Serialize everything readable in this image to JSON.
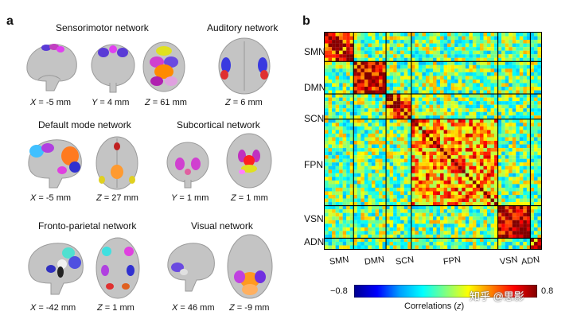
{
  "panel_a": {
    "letter": "a",
    "networks": [
      {
        "key": "smn",
        "title": "Sensorimotor network",
        "coords": [
          {
            "axis": "X",
            "value": "= -5 mm"
          },
          {
            "axis": "Y",
            "value": "= 4 mm"
          },
          {
            "axis": "Z",
            "value": "= 61 mm"
          }
        ]
      },
      {
        "key": "aud",
        "title": "Auditory network",
        "coords": [
          {
            "axis": "Z",
            "value": "= 6 mm"
          }
        ]
      },
      {
        "key": "dmn",
        "title": "Default mode network",
        "coords": [
          {
            "axis": "X",
            "value": "= -5 mm"
          },
          {
            "axis": "Z",
            "value": "= 27 mm"
          }
        ]
      },
      {
        "key": "scn",
        "title": "Subcortical network",
        "coords": [
          {
            "axis": "Y",
            "value": "= 1 mm"
          },
          {
            "axis": "Z",
            "value": "= 1 mm"
          }
        ]
      },
      {
        "key": "fpn",
        "title": "Fronto-parietal network",
        "coords": [
          {
            "axis": "X",
            "value": "= -42 mm"
          },
          {
            "axis": "Z",
            "value": "= 1 mm"
          }
        ]
      },
      {
        "key": "vsn",
        "title": "Visual network",
        "coords": [
          {
            "axis": "X",
            "value": "= 46 mm"
          },
          {
            "axis": "Z",
            "value": "= -9 mm"
          }
        ]
      }
    ]
  },
  "panel_b": {
    "letter": "b",
    "row_labels": [
      "SMN",
      "DMN",
      "SCN",
      "FPN",
      "VSN",
      "ADN"
    ],
    "col_labels": [
      "SMN",
      "DMN",
      "SCN",
      "FPN",
      "VSN",
      "ADN"
    ],
    "colorbar": {
      "min_label": "−0.8",
      "max_label": "0.8",
      "label": "Correlations",
      "label_var": "z"
    }
  },
  "watermark": "知乎 @思影",
  "chart_data": {
    "type": "heatmap",
    "title": "",
    "xlabel": "",
    "ylabel": "",
    "groups": [
      "SMN",
      "DMN",
      "SCN",
      "FPN",
      "VSN",
      "ADN"
    ],
    "group_sizes": [
      8,
      9,
      7,
      24,
      9,
      3
    ],
    "within_group_mean": {
      "SMN": 0.55,
      "DMN": 0.65,
      "SCN": 0.5,
      "FPN": 0.35,
      "VSN": 0.75,
      "ADN": 0.4
    },
    "between_group_mean": 0.0,
    "color_range": [
      -0.8,
      0.8
    ],
    "colorbar_label": "Correlations (z)",
    "colormap": [
      "#00008f",
      "#0000ff",
      "#00a0ff",
      "#00ffff",
      "#80ff80",
      "#ffff00",
      "#ff8000",
      "#ff0000",
      "#800000"
    ]
  },
  "colors": {
    "brain": "#bdbdbd",
    "brain_dark": "#8f8f8f",
    "grid_line": "#000000"
  }
}
